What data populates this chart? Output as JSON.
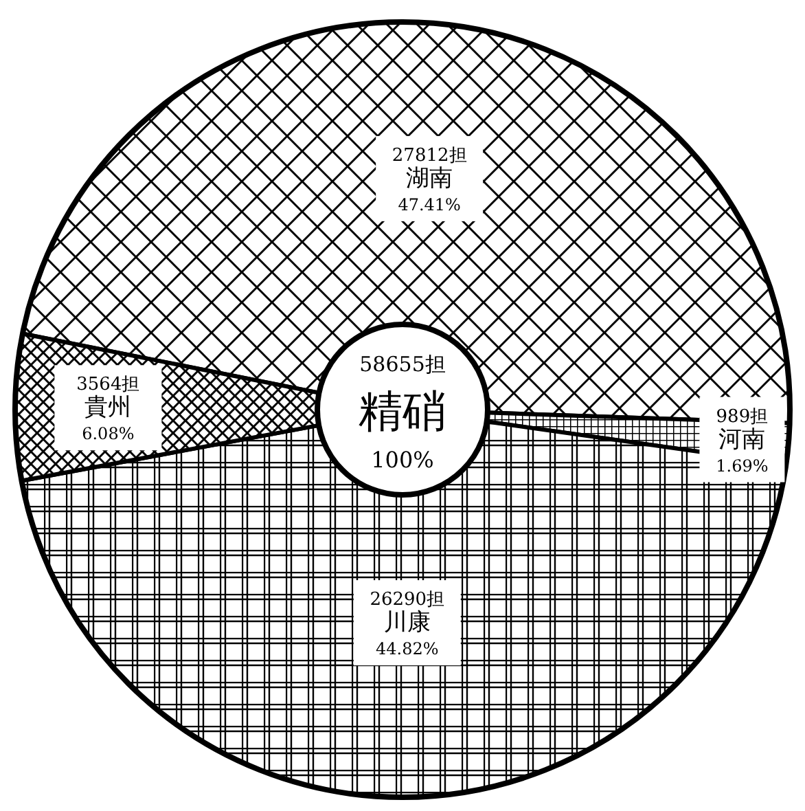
{
  "chart_data": {
    "type": "donut",
    "title": "精硝",
    "subtitle": "58655担",
    "categories": [
      "湖南",
      "河南",
      "川康",
      "貴州"
    ],
    "values": [
      27812,
      989,
      26290,
      3564
    ],
    "colors": [
      "#000000",
      "#000000",
      "#000000",
      "#000000"
    ],
    "value_labels": [
      "27812担",
      "989担",
      "26290担",
      "3564担"
    ],
    "annotations": [
      "100%",
      {
        "text": "47.41%",
        "x": "湖南"
      },
      {
        "text": "1.69%",
        "x": "河南"
      },
      {
        "text": "44.82%",
        "x": "川康"
      },
      {
        "text": "6.08%",
        "x": "貴州"
      }
    ]
  }
}
